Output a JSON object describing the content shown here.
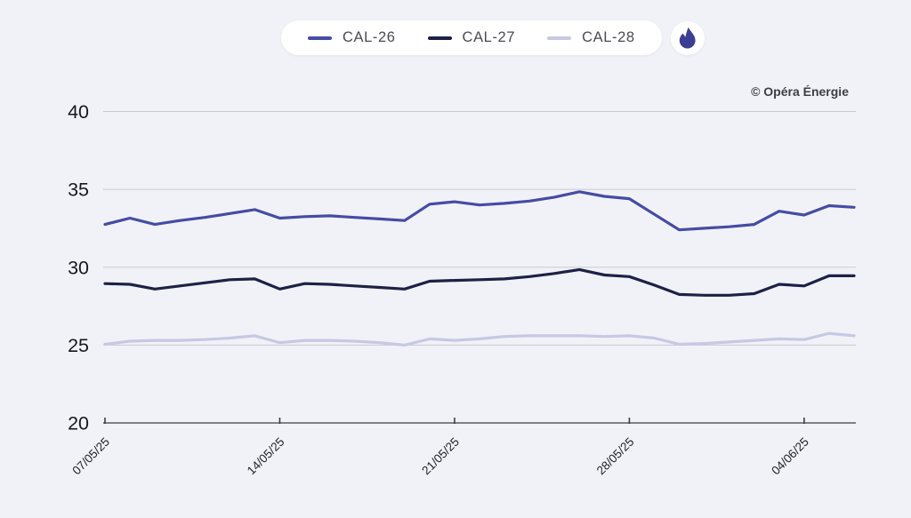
{
  "page": {
    "background": "#f1f2f7",
    "copyright": "© Opéra Énergie",
    "grid_color": "#c9cacf",
    "axis_color": "#3c3c41",
    "axis_text_color": "#232327",
    "y_label_color": "#17171c"
  },
  "legend": {
    "items": [
      {
        "label": "CAL-26",
        "color": "#454ca4"
      },
      {
        "label": "CAL-27",
        "color": "#1d2147"
      },
      {
        "label": "CAL-28",
        "color": "#c7c8e3"
      }
    ],
    "badge_icon": "gas-flame-icon",
    "badge_color": "#3b3f93"
  },
  "chart_data": {
    "type": "line",
    "title": "",
    "xlabel": "",
    "ylabel": "",
    "ylim": [
      20,
      40
    ],
    "y_ticks": [
      20,
      25,
      30,
      35,
      40
    ],
    "grid": "horizontal",
    "legend_position": "top-center",
    "x": [
      "07/05/25",
      "08/05/25",
      "09/05/25",
      "10/05/25",
      "11/05/25",
      "12/05/25",
      "13/05/25",
      "14/05/25",
      "15/05/25",
      "16/05/25",
      "17/05/25",
      "18/05/25",
      "19/05/25",
      "20/05/25",
      "21/05/25",
      "22/05/25",
      "23/05/25",
      "24/05/25",
      "25/05/25",
      "26/05/25",
      "27/05/25",
      "28/05/25",
      "29/05/25",
      "30/05/25",
      "31/05/25",
      "01/06/25",
      "02/06/25",
      "03/06/25",
      "04/06/25",
      "05/06/25",
      "06/06/25"
    ],
    "x_tick_indices": [
      0,
      7,
      14,
      21,
      28
    ],
    "x_tick_labels": [
      "07/05/25",
      "14/05/25",
      "21/05/25",
      "28/05/25",
      "04/06/25"
    ],
    "series": [
      {
        "name": "CAL-26",
        "color": "#454ca4",
        "values": [
          32.75,
          33.15,
          32.75,
          33.0,
          33.2,
          33.45,
          33.7,
          33.15,
          33.25,
          33.3,
          33.2,
          33.1,
          33.0,
          34.05,
          34.2,
          34.0,
          34.1,
          34.25,
          34.5,
          34.85,
          34.55,
          34.4,
          33.4,
          32.4,
          32.5,
          32.6,
          32.75,
          33.6,
          33.35,
          33.95,
          33.85
        ]
      },
      {
        "name": "CAL-27",
        "color": "#1d2147",
        "values": [
          28.95,
          28.9,
          28.6,
          28.8,
          29.0,
          29.2,
          29.25,
          28.6,
          28.95,
          28.9,
          28.8,
          28.7,
          28.6,
          29.1,
          29.15,
          29.2,
          29.25,
          29.4,
          29.6,
          29.85,
          29.5,
          29.4,
          28.85,
          28.25,
          28.2,
          28.2,
          28.3,
          28.9,
          28.8,
          29.45,
          29.45
        ]
      },
      {
        "name": "CAL-28",
        "color": "#c7c8e3",
        "values": [
          25.05,
          25.25,
          25.3,
          25.3,
          25.35,
          25.45,
          25.6,
          25.15,
          25.3,
          25.3,
          25.25,
          25.15,
          25.0,
          25.4,
          25.3,
          25.4,
          25.55,
          25.6,
          25.6,
          25.6,
          25.55,
          25.6,
          25.45,
          25.05,
          25.1,
          25.2,
          25.3,
          25.4,
          25.35,
          25.75,
          25.6
        ]
      }
    ]
  }
}
